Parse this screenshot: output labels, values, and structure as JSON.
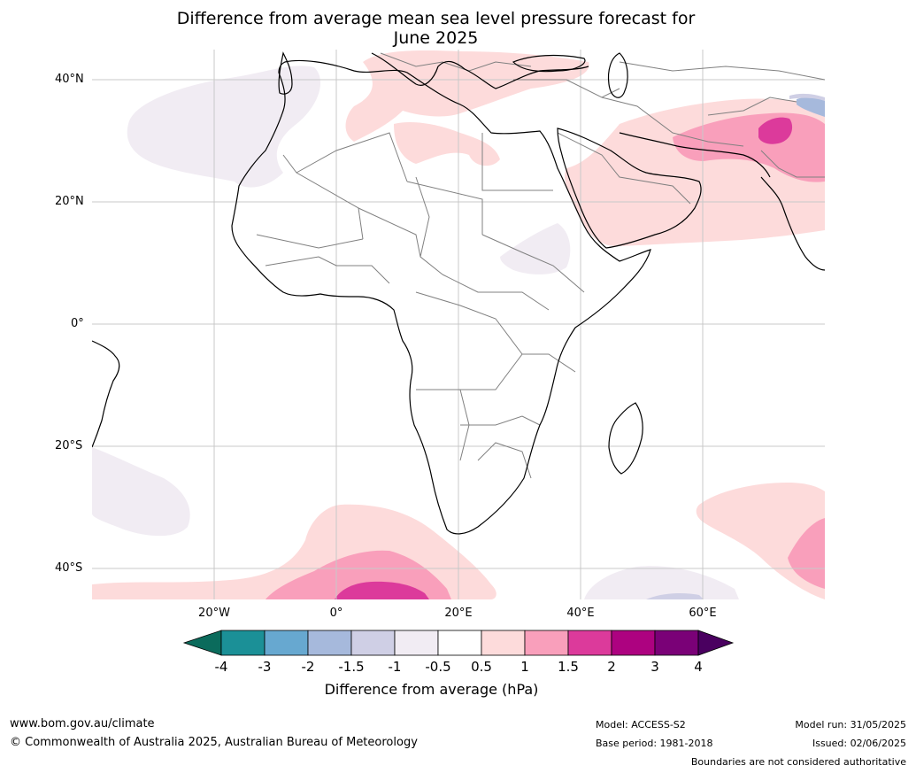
{
  "title": {
    "line1": "Difference from average mean sea level pressure forecast for",
    "line2": "June 2025"
  },
  "axes": {
    "lat_labels": [
      "40°N",
      "20°N",
      "0°",
      "20°S",
      "40°S"
    ],
    "lon_labels": [
      "20°W",
      "0°",
      "20°E",
      "40°E",
      "60°E"
    ]
  },
  "colorbar": {
    "title": "Difference from average (hPa)",
    "ticks": [
      "-4",
      "-3",
      "-2",
      "-1.5",
      "-1",
      "-0.5",
      "0.5",
      "1",
      "1.5",
      "2",
      "3",
      "4"
    ],
    "colors": {
      "below": "#0b6b5c",
      "bins": [
        "#1b9097",
        "#67a8d0",
        "#a6b9dc",
        "#cfcfe5",
        "#f1ecf3",
        "#ffffff",
        "#fddbdb",
        "#f99fbb",
        "#dc3a9b",
        "#ad0280",
        "#7a0177"
      ],
      "above": "#4a0060"
    }
  },
  "footer": {
    "website": "www.bom.gov.au/climate",
    "copyright": "© Commonwealth of Australia 2025, Australian Bureau of Meteorology",
    "model": "Model: ACCESS-S2",
    "base_period": "Base period: 1981-2018",
    "model_run": "Model run: 31/05/2025",
    "issued": "Issued: 02/06/2025",
    "disclaimer": "Boundaries are not considered authoritative"
  },
  "map_colors": {
    "coast": "#000000",
    "border": "#808080",
    "grid": "#c8c8c8"
  }
}
